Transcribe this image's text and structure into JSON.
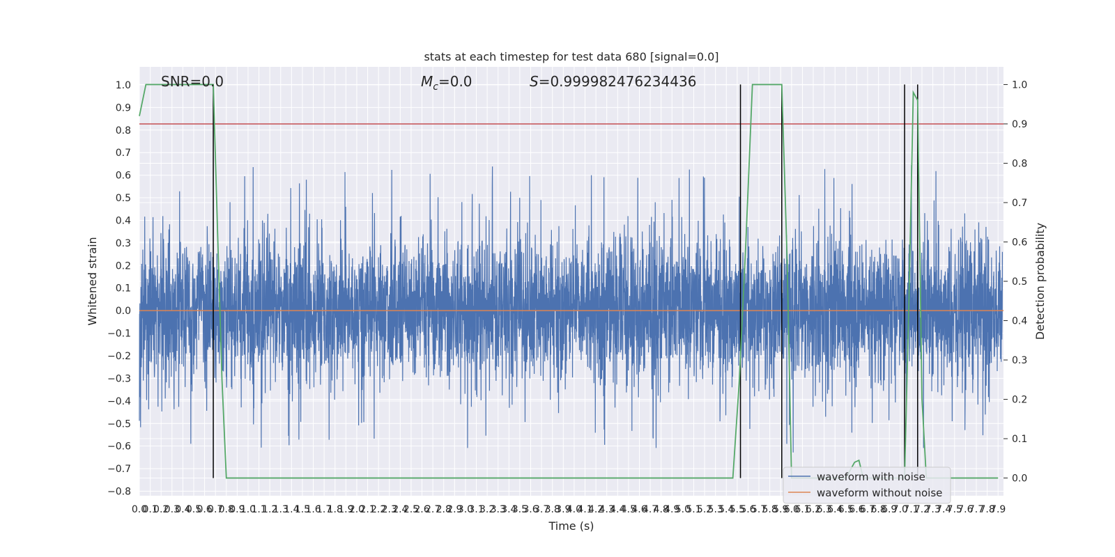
{
  "chart_data": {
    "type": "line",
    "title": "stats at each timestep for test data 680 [signal=0.0]",
    "xlabel": "Time (s)",
    "ylabel_left": "Whitened strain",
    "ylabel_right": "Detection probability",
    "xlim": [
      0.0,
      7.95
    ],
    "ylim_left": [
      -0.82,
      1.08
    ],
    "ylim_right": [
      -0.045,
      1.045
    ],
    "x_ticks": [
      "0.0",
      "0.1",
      "0.2",
      "0.3",
      "0.4",
      "0.5",
      "0.6",
      "0.7",
      "0.8",
      "0.9",
      "1.0",
      "1.1",
      "1.2",
      "1.3",
      "1.4",
      "1.5",
      "1.6",
      "1.7",
      "1.8",
      "1.9",
      "2.0",
      "2.1",
      "2.2",
      "2.3",
      "2.4",
      "2.5",
      "2.6",
      "2.7",
      "2.8",
      "2.9",
      "3.0",
      "3.1",
      "3.2",
      "3.3",
      "3.4",
      "3.5",
      "3.6",
      "3.7",
      "3.8",
      "3.9",
      "4.0",
      "4.1",
      "4.2",
      "4.3",
      "4.4",
      "4.5",
      "4.6",
      "4.7",
      "4.8",
      "4.9",
      "5.0",
      "5.1",
      "5.2",
      "5.3",
      "5.4",
      "5.5",
      "5.6",
      "5.7",
      "5.8",
      "5.9",
      "6.0",
      "6.1",
      "6.2",
      "6.3",
      "6.4",
      "6.5",
      "6.6",
      "6.7",
      "6.8",
      "6.9",
      "7.0",
      "7.1",
      "7.2",
      "7.3",
      "7.4",
      "7.5",
      "7.6",
      "7.7",
      "7.8",
      "7.9"
    ],
    "y_ticks_left": [
      "1.0",
      "0.9",
      "0.8",
      "0.7",
      "0.6",
      "0.5",
      "0.4",
      "0.3",
      "0.2",
      "0.1",
      "0.0",
      "−0.1",
      "−0.2",
      "−0.3",
      "−0.4",
      "−0.5",
      "−0.6",
      "−0.7",
      "−0.8"
    ],
    "y_ticks_right": [
      "1.0",
      "0.9",
      "0.8",
      "0.7",
      "0.6",
      "0.5",
      "0.4",
      "0.3",
      "0.2",
      "0.1",
      "0.0"
    ],
    "annotations": {
      "snr": "SNR=0.0",
      "mc_symbol": "M",
      "mc_sub": "c",
      "mc_value": "=0.0",
      "s_symbol": "S",
      "s_value": "=0.999982476234436"
    },
    "threshold": 0.9,
    "vertical_markers": [
      0.68,
      5.53,
      5.91,
      7.04,
      7.16
    ],
    "detection_probability": {
      "x": [
        0.0,
        0.06,
        0.1,
        0.2,
        0.3,
        0.4,
        0.5,
        0.6,
        0.68,
        0.72,
        0.76,
        0.8,
        5.4,
        5.46,
        5.52,
        5.58,
        5.64,
        5.7,
        5.8,
        5.91,
        5.96,
        6.0,
        6.1,
        6.5,
        6.58,
        6.62,
        6.66,
        7.0,
        7.04,
        7.08,
        7.12,
        7.16,
        7.2,
        7.24,
        7.3,
        7.5,
        7.9
      ],
      "y": [
        0.92,
        1.0,
        1.0,
        1.0,
        1.0,
        1.0,
        1.0,
        1.0,
        1.0,
        0.62,
        0.25,
        0.0,
        0.0,
        0.0,
        0.25,
        0.6,
        1.0,
        1.0,
        1.0,
        1.0,
        0.55,
        0.0,
        0.0,
        0.0,
        0.04,
        0.045,
        0.0,
        0.0,
        0.0,
        0.45,
        0.98,
        0.96,
        0.2,
        0.0,
        0.0,
        0.0,
        0.0
      ]
    },
    "series": [
      {
        "name": "waveform with noise",
        "color": "#4c72b0"
      },
      {
        "name": "waveform without noise",
        "color": "#dd8452"
      }
    ],
    "detection_color": "#55a868",
    "threshold_color": "#c44e52",
    "marker_color": "#000000",
    "legend_position": "lower right",
    "grid": true
  }
}
